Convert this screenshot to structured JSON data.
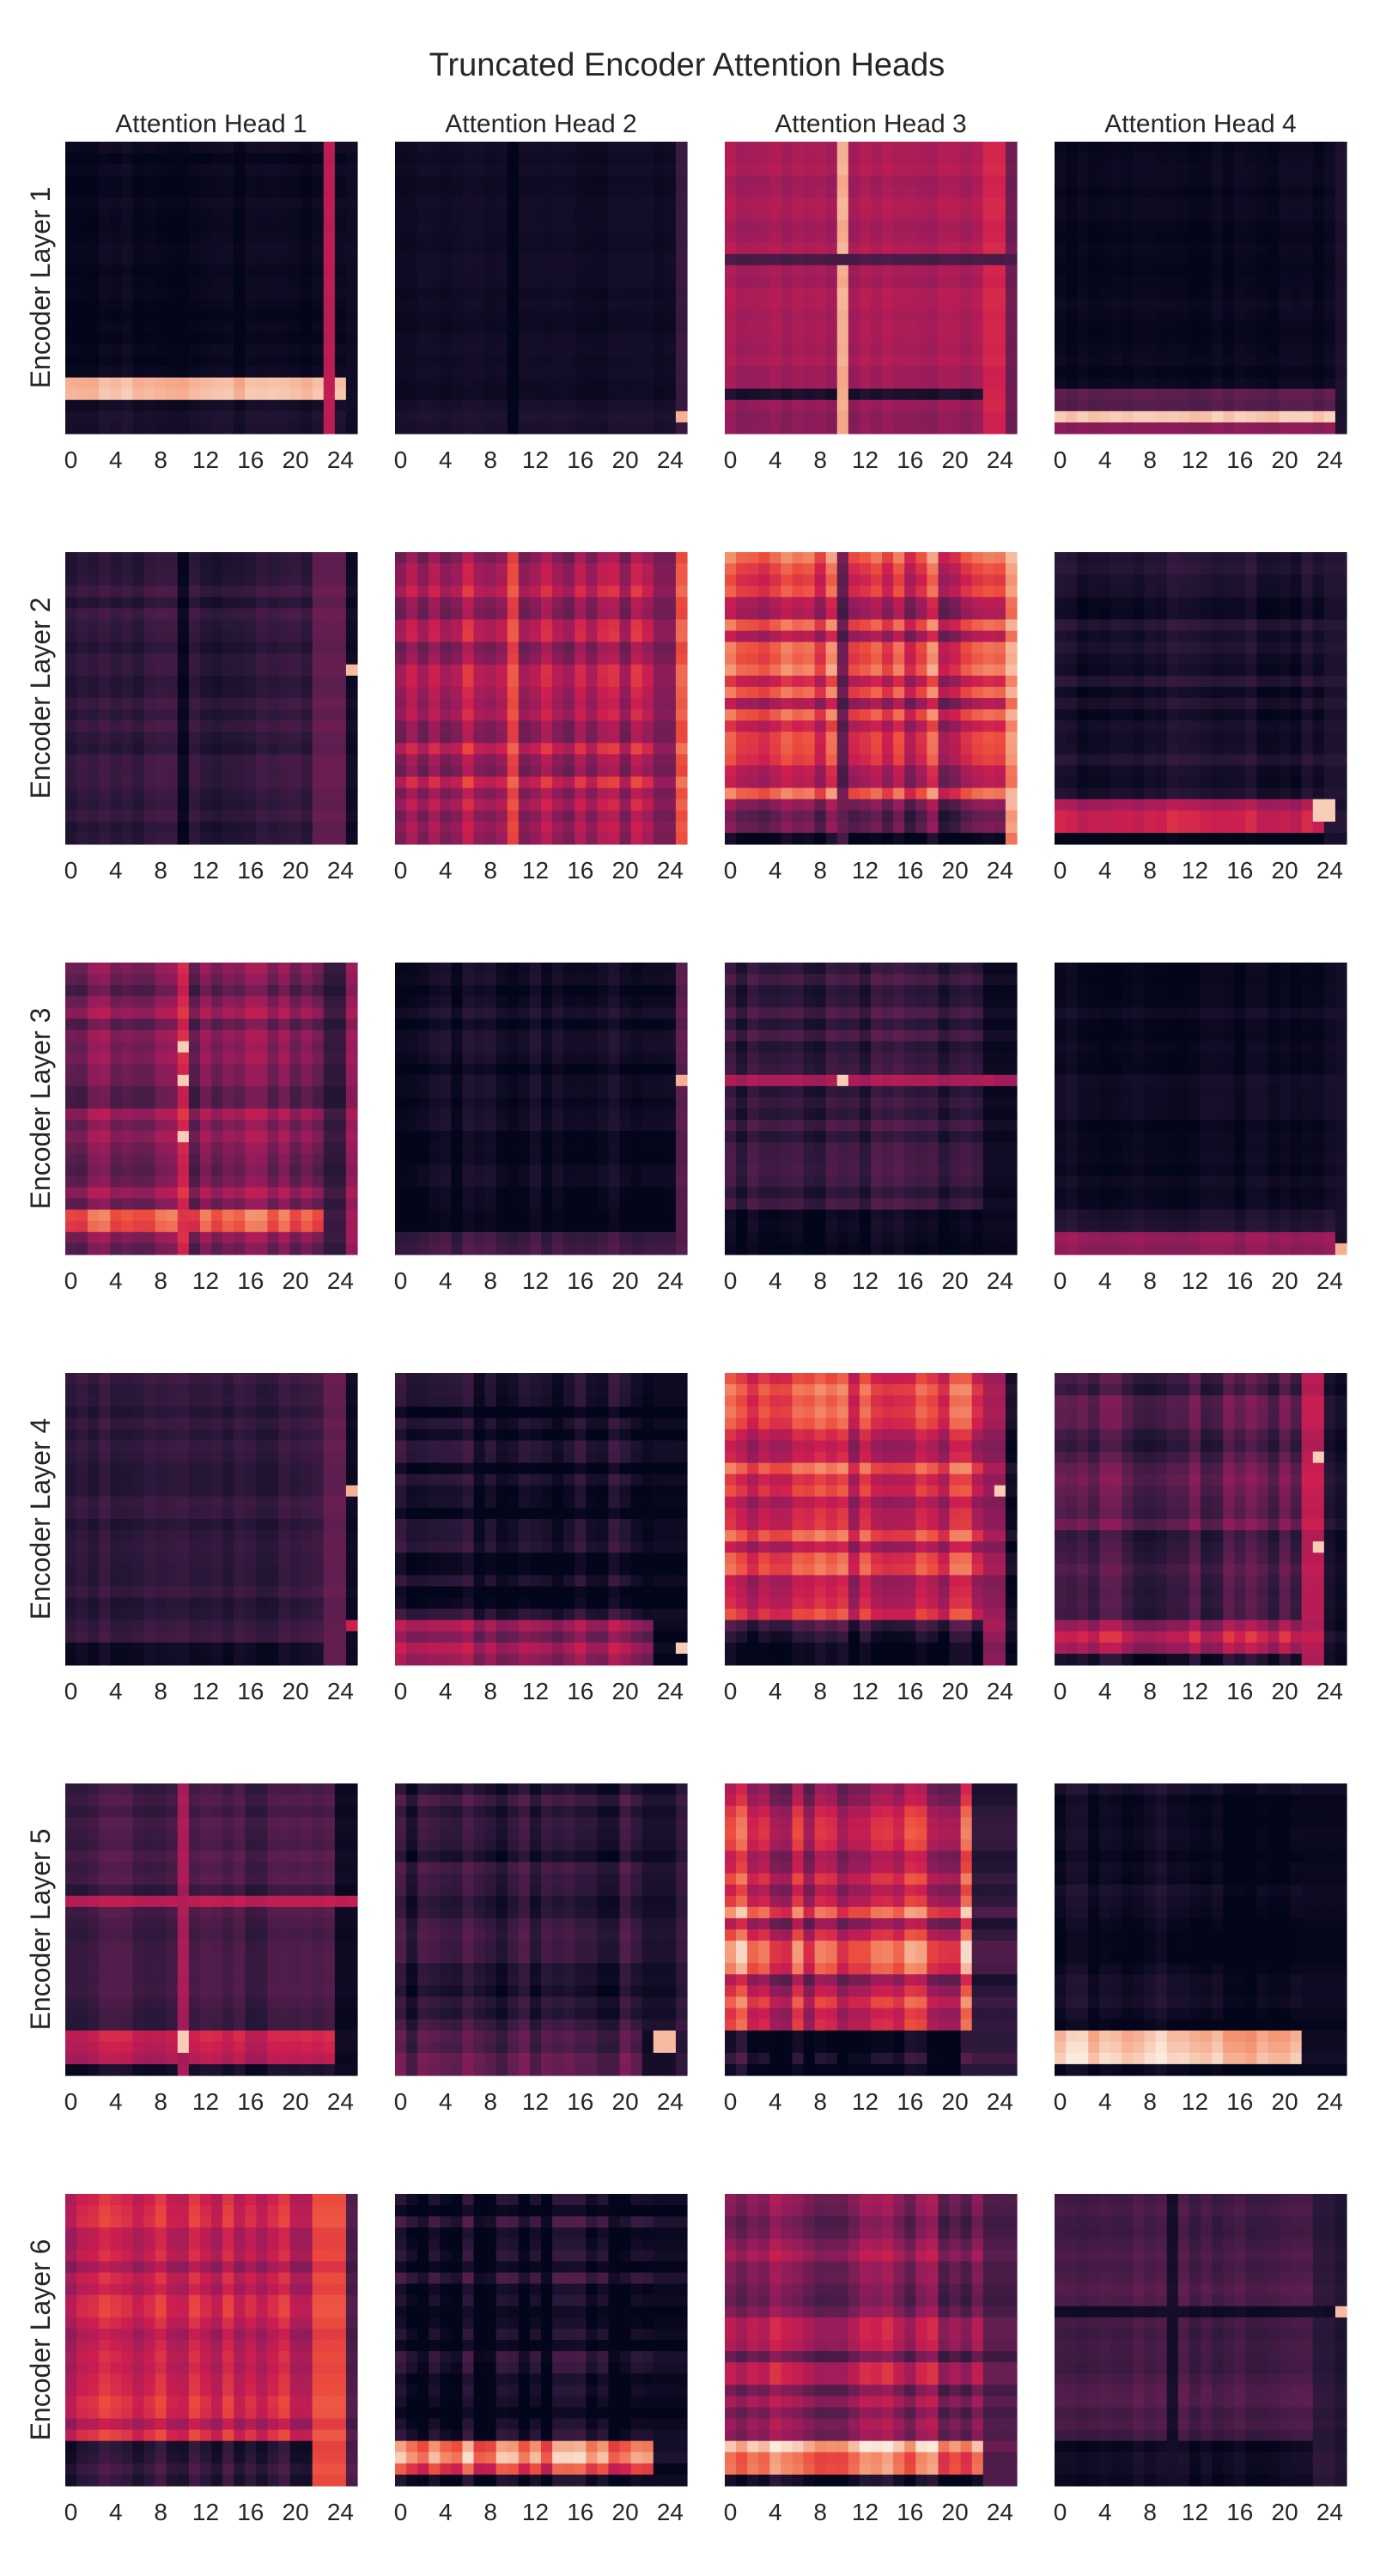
{
  "chart_data": {
    "type": "heatmap",
    "title": "Truncated Encoder Attention Heads",
    "column_titles": [
      "Attention Head 1",
      "Attention Head 2",
      "Attention Head 3",
      "Attention Head 4"
    ],
    "row_labels": [
      "Encoder Layer 1",
      "Encoder Layer 2",
      "Encoder Layer 3",
      "Encoder Layer 4",
      "Encoder Layer 5",
      "Encoder Layer 6"
    ],
    "x_ticks": [
      0,
      4,
      8,
      12,
      16,
      20,
      24
    ],
    "matrix_size": 26,
    "colormap": "rocket",
    "grid": false,
    "panels": [
      [
        {
          "rowFill": [
            [
              0,
              21,
              0.02
            ],
            [
              21,
              23,
              0.9
            ],
            [
              23,
              24,
              0.04
            ]
          ],
          "colMod": [
            [
              23,
              0.55
            ],
            [
              25,
              0.05
            ]
          ],
          "seed": 11,
          "noise": 0.03
        },
        {
          "rowFill": [
            [
              0,
              23,
              0.05
            ],
            [
              23,
              24,
              0.09
            ]
          ],
          "colMod": [
            [
              10,
              -0.03
            ],
            [
              25,
              0.2
            ]
          ],
          "seed": 12,
          "noise": 0.015,
          "hot": [
            [
              24,
              25,
              0.9
            ]
          ]
        },
        {
          "rowFill": [
            [
              0,
              22,
              0.5
            ],
            [
              22,
              23,
              0.1
            ],
            [
              23,
              26,
              0.45
            ]
          ],
          "colMod": [
            [
              10,
              0.9
            ],
            [
              25,
              0.35
            ],
            [
              23,
              0.62
            ],
            [
              24,
              0.62
            ]
          ],
          "rowMod": [
            [
              10,
              0.25
            ]
          ],
          "seed": 13,
          "noise": 0.03
        },
        {
          "rowFill": [
            [
              0,
              22,
              0.02
            ],
            [
              22,
              24,
              0.3
            ],
            [
              24,
              25,
              0.95
            ],
            [
              25,
              26,
              0.4
            ]
          ],
          "colMod": [
            [
              25,
              0.1
            ]
          ],
          "seed": 14,
          "noise": 0.02
        }
      ],
      [
        {
          "rowFill": [
            [
              0,
              26,
              0.16
            ]
          ],
          "colMod": [
            [
              10,
              0.02
            ],
            [
              22,
              0.32
            ],
            [
              23,
              0.32
            ],
            [
              24,
              0.32
            ],
            [
              25,
              0.05
            ]
          ],
          "seed": 21,
          "noise": 0.05,
          "hot": [
            [
              10,
              25,
              0.92
            ]
          ]
        },
        {
          "rowFill": [
            [
              0,
              26,
              0.52
            ]
          ],
          "colMod": [
            [
              10,
              0.72
            ],
            [
              23,
              0.4
            ],
            [
              24,
              0.4
            ],
            [
              25,
              0.75
            ]
          ],
          "seed": 22,
          "noise": 0.1
        },
        {
          "rowFill": [
            [
              0,
              22,
              0.6
            ],
            [
              22,
              25,
              0.25
            ],
            [
              25,
              26,
              0.08
            ]
          ],
          "colMod": [
            [
              10,
              0.3
            ],
            [
              25,
              0.85
            ]
          ],
          "seed": 23,
          "noise": 0.16
        },
        {
          "rowFill": [
            [
              0,
              22,
              0.1
            ],
            [
              22,
              25,
              0.55
            ],
            [
              25,
              26,
              0.03
            ]
          ],
          "colMod": [
            [
              24,
              0.12
            ],
            [
              25,
              0.12
            ]
          ],
          "seed": 24,
          "noise": 0.06,
          "hot": [
            [
              23,
              23,
              0.95
            ],
            [
              23,
              24,
              0.95
            ],
            [
              22,
              23,
              0.95
            ],
            [
              22,
              24,
              0.95
            ]
          ]
        }
      ],
      [
        {
          "rowFill": [
            [
              0,
              22,
              0.38
            ],
            [
              22,
              24,
              0.68
            ],
            [
              24,
              26,
              0.35
            ]
          ],
          "colMod": [
            [
              10,
              0.62
            ],
            [
              23,
              0.18
            ],
            [
              24,
              0.18
            ],
            [
              25,
              0.45
            ]
          ],
          "seed": 31,
          "noise": 0.1,
          "hot": [
            [
              7,
              10,
              0.95
            ],
            [
              10,
              10,
              0.95
            ],
            [
              15,
              10,
              0.95
            ]
          ]
        },
        {
          "rowFill": [
            [
              0,
              22,
              0.06
            ],
            [
              22,
              24,
              0.03
            ],
            [
              24,
              26,
              0.25
            ]
          ],
          "colMod": [
            [
              25,
              0.3
            ]
          ],
          "seed": 32,
          "noise": 0.05,
          "hot": [
            [
              10,
              25,
              0.9
            ]
          ]
        },
        {
          "rowFill": [
            [
              0,
              22,
              0.18
            ],
            [
              22,
              26,
              0.03
            ]
          ],
          "colMod": [
            [
              23,
              0.04
            ],
            [
              24,
              0.04
            ],
            [
              25,
              0.04
            ]
          ],
          "rowMod": [
            [
              10,
              0.5
            ]
          ],
          "seed": 33,
          "noise": 0.07,
          "hot": [
            [
              10,
              10,
              0.95
            ]
          ]
        },
        {
          "rowFill": [
            [
              0,
              22,
              0.04
            ],
            [
              22,
              24,
              0.1
            ],
            [
              24,
              26,
              0.45
            ]
          ],
          "colMod": [
            [
              25,
              0.08
            ]
          ],
          "seed": 34,
          "noise": 0.03,
          "hot": [
            [
              25,
              25,
              0.9
            ]
          ]
        }
      ],
      [
        {
          "rowFill": [
            [
              0,
              22,
              0.17
            ],
            [
              22,
              24,
              0.2
            ],
            [
              24,
              26,
              0.05
            ]
          ],
          "colMod": [
            [
              23,
              0.32
            ],
            [
              24,
              0.32
            ],
            [
              25,
              0.04
            ]
          ],
          "seed": 41,
          "noise": 0.04,
          "hot": [
            [
              10,
              25,
              0.9
            ],
            [
              22,
              25,
              0.6
            ]
          ]
        },
        {
          "rowFill": [
            [
              0,
              22,
              0.05
            ],
            [
              22,
              26,
              0.45
            ]
          ],
          "colMod": [
            [
              23,
              0.02
            ],
            [
              24,
              0.02
            ],
            [
              25,
              0.02
            ]
          ],
          "seed": 42,
          "noise": 0.1,
          "hot": [
            [
              24,
              25,
              0.95
            ]
          ]
        },
        {
          "rowFill": [
            [
              0,
              22,
              0.63
            ],
            [
              22,
              25,
              0.12
            ],
            [
              25,
              26,
              0.06
            ]
          ],
          "colMod": [
            [
              23,
              0.45
            ],
            [
              24,
              0.45
            ],
            [
              25,
              0.05
            ]
          ],
          "seed": 43,
          "noise": 0.13,
          "hot": [
            [
              10,
              24,
              0.95
            ]
          ]
        },
        {
          "rowFill": [
            [
              0,
              22,
              0.25
            ],
            [
              22,
              25,
              0.52
            ],
            [
              25,
              26,
              0.15
            ]
          ],
          "colMod": [
            [
              22,
              0.55
            ],
            [
              23,
              0.55
            ],
            [
              24,
              0.1
            ],
            [
              25,
              0.05
            ]
          ],
          "seed": 44,
          "noise": 0.1,
          "hot": [
            [
              7,
              23,
              0.95
            ],
            [
              15,
              23,
              0.95
            ]
          ]
        }
      ],
      [
        {
          "rowFill": [
            [
              0,
              22,
              0.22
            ],
            [
              22,
              25,
              0.55
            ],
            [
              25,
              26,
              0.06
            ]
          ],
          "colMod": [
            [
              10,
              0.5
            ],
            [
              24,
              0.04
            ],
            [
              25,
              0.04
            ]
          ],
          "rowMod": [
            [
              10,
              0.55
            ]
          ],
          "seed": 51,
          "noise": 0.05,
          "hot": [
            [
              22,
              10,
              0.95
            ],
            [
              23,
              10,
              0.95
            ]
          ]
        },
        {
          "rowFill": [
            [
              0,
              22,
              0.15
            ],
            [
              22,
              26,
              0.32
            ]
          ],
          "colMod": [
            [
              22,
              0.08
            ],
            [
              23,
              0.08
            ],
            [
              24,
              0.08
            ],
            [
              25,
              0.18
            ]
          ],
          "seed": 52,
          "noise": 0.08,
          "hot": [
            [
              22,
              23,
              0.92
            ],
            [
              23,
              23,
              0.92
            ],
            [
              22,
              24,
              0.92
            ],
            [
              23,
              24,
              0.92
            ]
          ]
        },
        {
          "rowFill": [
            [
              0,
              22,
              0.62
            ],
            [
              22,
              26,
              0.03
            ]
          ],
          "colMod": [
            [
              22,
              0.18
            ],
            [
              23,
              0.18
            ],
            [
              24,
              0.18
            ],
            [
              25,
              0.18
            ]
          ],
          "seed": 53,
          "noise": 0.18
        },
        {
          "rowFill": [
            [
              0,
              22,
              0.03
            ],
            [
              22,
              25,
              0.88
            ],
            [
              25,
              26,
              0.04
            ]
          ],
          "colMod": [
            [
              22,
              0.03
            ],
            [
              23,
              0.03
            ],
            [
              24,
              0.03
            ],
            [
              25,
              0.03
            ]
          ],
          "seed": 54,
          "noise": 0.07
        }
      ],
      [
        {
          "rowFill": [
            [
              0,
              22,
              0.55
            ],
            [
              22,
              26,
              0.12
            ]
          ],
          "colMod": [
            [
              22,
              0.7
            ],
            [
              23,
              0.7
            ],
            [
              24,
              0.7
            ],
            [
              25,
              0.25
            ]
          ],
          "seed": 61,
          "noise": 0.09
        },
        {
          "rowFill": [
            [
              0,
              22,
              0.05
            ],
            [
              22,
              25,
              0.75
            ],
            [
              25,
              26,
              0.03
            ]
          ],
          "colMod": [
            [
              23,
              0.05
            ],
            [
              24,
              0.05
            ],
            [
              25,
              0.05
            ]
          ],
          "seed": 62,
          "noise": 0.12
        },
        {
          "rowFill": [
            [
              0,
              22,
              0.42
            ],
            [
              22,
              25,
              0.78
            ],
            [
              25,
              26,
              0.05
            ]
          ],
          "colMod": [
            [
              23,
              0.28
            ],
            [
              24,
              0.28
            ],
            [
              25,
              0.28
            ]
          ],
          "seed": 63,
          "noise": 0.14
        },
        {
          "rowFill": [
            [
              0,
              22,
              0.25
            ],
            [
              22,
              26,
              0.05
            ]
          ],
          "colMod": [
            [
              10,
              0.08
            ],
            [
              23,
              0.16
            ],
            [
              24,
              0.16
            ],
            [
              25,
              0.12
            ]
          ],
          "rowMod": [
            [
              10,
              0.06
            ]
          ],
          "seed": 64,
          "noise": 0.04,
          "hot": [
            [
              10,
              25,
              0.92
            ]
          ]
        }
      ]
    ]
  }
}
